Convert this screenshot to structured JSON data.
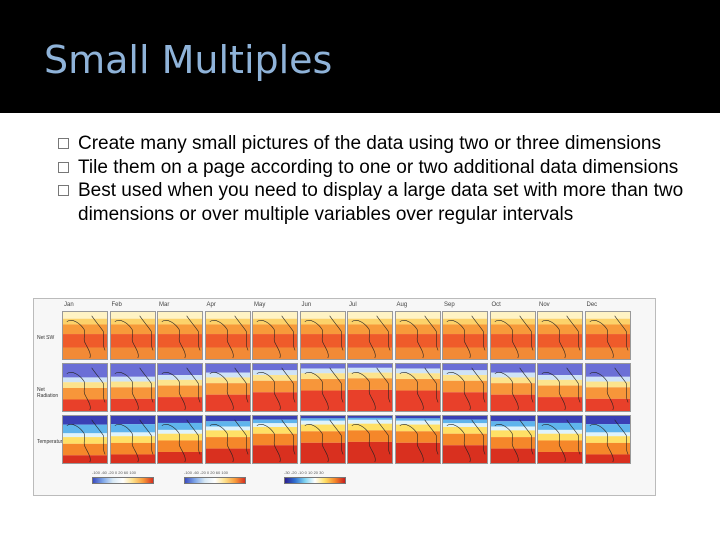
{
  "slide": {
    "title": "Small Multiples",
    "bullets": [
      "Create many small pictures of the data using two or three dimensions",
      "Tile them on a page according to one or two additional data dimensions",
      "Best used when you need to display a large data set with more than two dimensions or over multiple variables over regular intervals"
    ]
  },
  "figure": {
    "months": [
      "Jan",
      "Feb",
      "Mar",
      "Apr",
      "May",
      "Jun",
      "Jul",
      "Aug",
      "Sep",
      "Oct",
      "Nov",
      "Dec"
    ],
    "rows": [
      "Net SW",
      "Net Radiation",
      "Temperature"
    ],
    "colorbars": [
      {
        "ticks": "-100 -60 -20 0 20 60 100",
        "colors": [
          "#3b4cc0",
          "#7ea6e8",
          "#d8e9f5",
          "#ffffff",
          "#fde08b",
          "#f89d3c",
          "#d7301f"
        ]
      },
      {
        "ticks": "-100 -60 -20 0 20 60 100",
        "colors": [
          "#3b4cc0",
          "#7ea6e8",
          "#d8e9f5",
          "#ffffff",
          "#fde08b",
          "#f89d3c",
          "#d7301f"
        ]
      },
      {
        "ticks": "-30 -20 -10 0 10 20 30",
        "colors": [
          "#2c1e8f",
          "#2f6fd0",
          "#7fd3f0",
          "#ffffff",
          "#ffe066",
          "#f5872a",
          "#c81d1d"
        ]
      }
    ]
  }
}
